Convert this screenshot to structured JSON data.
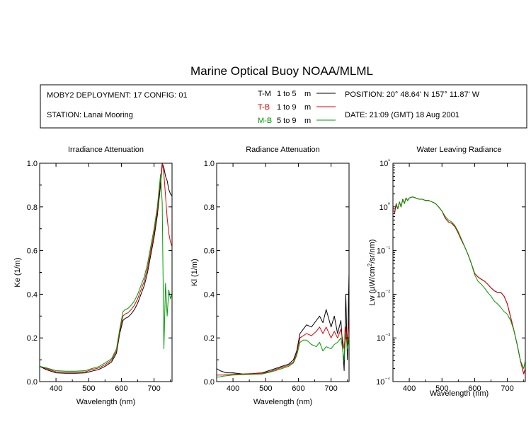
{
  "page": {
    "title": "Marine Optical Buoy NOAA/MLML"
  },
  "header": {
    "deployment": "MOBY2 DEPLOYMENT: 17 CONFIG: 01",
    "station": "STATION: Lanai Mooring",
    "position": "POSITION: 20° 48.64' N   157° 11.87' W",
    "date": "DATE: 21:09 (GMT) 18 Aug 2001",
    "legend": [
      {
        "code": "T-M",
        "range": "1 to 5",
        "unit": "m",
        "color": "#000000"
      },
      {
        "code": "T-B",
        "range": "1 to 9",
        "unit": "m",
        "color": "#e00000"
      },
      {
        "code": "M-B",
        "range": "5 to 9",
        "unit": "m",
        "color": "#009a00"
      }
    ]
  },
  "colors": {
    "T-M": "#000000",
    "T-B": "#e00000",
    "M-B": "#009a00"
  },
  "chart_data": [
    {
      "type": "line",
      "title": "Irradiance Attenuation",
      "xlabel": "Wavelength (nm)",
      "ylabel": "Ke (1/m)",
      "xlim": [
        350,
        755
      ],
      "ylim": [
        0,
        1.0
      ],
      "xticks": [
        400,
        500,
        600,
        700
      ],
      "yticks": [
        0.0,
        0.2,
        0.4,
        0.6,
        0.8,
        1.0
      ],
      "ytick_labels": [
        "0.0",
        "0.2",
        "0.4",
        "0.6",
        "0.8",
        "1.0"
      ],
      "legend": "header",
      "series": [
        {
          "name": "T-M",
          "x": [
            350,
            370,
            400,
            430,
            460,
            490,
            510,
            530,
            550,
            570,
            585,
            595,
            605,
            612,
            620,
            630,
            640,
            650,
            660,
            670,
            680,
            690,
            700,
            710,
            720,
            725,
            730,
            735,
            740,
            745,
            750,
            755
          ],
          "y": [
            0.07,
            0.055,
            0.04,
            0.038,
            0.038,
            0.04,
            0.048,
            0.055,
            0.07,
            0.09,
            0.13,
            0.22,
            0.28,
            0.29,
            0.295,
            0.31,
            0.33,
            0.36,
            0.4,
            0.44,
            0.5,
            0.58,
            0.66,
            0.76,
            0.9,
            1.0,
            0.98,
            0.94,
            0.92,
            0.88,
            0.86,
            0.85
          ]
        },
        {
          "name": "T-B",
          "x": [
            350,
            370,
            400,
            430,
            460,
            490,
            510,
            530,
            550,
            570,
            585,
            595,
            605,
            612,
            620,
            630,
            640,
            650,
            660,
            670,
            680,
            690,
            700,
            710,
            720,
            725,
            730,
            735,
            740,
            745,
            750,
            755
          ],
          "y": [
            0.07,
            0.06,
            0.045,
            0.043,
            0.043,
            0.045,
            0.055,
            0.062,
            0.077,
            0.098,
            0.14,
            0.23,
            0.3,
            0.31,
            0.315,
            0.33,
            0.35,
            0.38,
            0.42,
            0.46,
            0.52,
            0.6,
            0.68,
            0.78,
            0.93,
            1.0,
            0.95,
            0.85,
            0.75,
            0.68,
            0.64,
            0.62
          ]
        },
        {
          "name": "M-B",
          "x": [
            350,
            370,
            400,
            430,
            460,
            490,
            510,
            530,
            550,
            570,
            585,
            595,
            605,
            612,
            620,
            630,
            640,
            650,
            660,
            670,
            680,
            690,
            700,
            710,
            720,
            725,
            730,
            735,
            740,
            745,
            750,
            755
          ],
          "y": [
            0.07,
            0.063,
            0.05,
            0.048,
            0.048,
            0.05,
            0.06,
            0.068,
            0.085,
            0.105,
            0.15,
            0.24,
            0.32,
            0.33,
            0.335,
            0.35,
            0.37,
            0.4,
            0.44,
            0.48,
            0.54,
            0.62,
            0.7,
            0.8,
            0.95,
            0.82,
            0.15,
            0.45,
            0.3,
            0.42,
            0.38,
            0.4
          ]
        }
      ]
    },
    {
      "type": "line",
      "title": "Radiance Attenuation",
      "xlabel": "Wavelength (nm)",
      "ylabel": "Kl (1/m)",
      "xlim": [
        350,
        755
      ],
      "ylim": [
        0,
        1.0
      ],
      "xticks": [
        400,
        500,
        600,
        700
      ],
      "yticks": [
        0.0,
        0.2,
        0.4,
        0.6,
        0.8,
        1.0
      ],
      "ytick_labels": [
        "0.0",
        "0.2",
        "0.4",
        "0.6",
        "0.8",
        "1.0"
      ],
      "legend": "header",
      "series": [
        {
          "name": "T-M",
          "x": [
            350,
            360,
            370,
            380,
            400,
            430,
            460,
            490,
            510,
            530,
            550,
            570,
            585,
            595,
            605,
            615,
            625,
            640,
            655,
            665,
            675,
            685,
            700,
            710,
            720,
            730,
            740,
            745,
            750,
            755
          ],
          "y": [
            0.06,
            0.05,
            0.045,
            0.04,
            0.04,
            0.035,
            0.037,
            0.04,
            0.05,
            0.06,
            0.07,
            0.08,
            0.1,
            0.14,
            0.22,
            0.24,
            0.26,
            0.25,
            0.28,
            0.3,
            0.27,
            0.33,
            0.25,
            0.3,
            0.22,
            0.28,
            0.05,
            0.4,
            0.1,
            0.5
          ]
        },
        {
          "name": "T-B",
          "x": [
            350,
            360,
            370,
            380,
            400,
            430,
            460,
            490,
            510,
            530,
            550,
            570,
            585,
            595,
            605,
            615,
            625,
            640,
            655,
            665,
            675,
            685,
            700,
            710,
            720,
            730,
            740,
            745,
            750,
            755
          ],
          "y": [
            0.03,
            0.03,
            0.03,
            0.032,
            0.035,
            0.034,
            0.036,
            0.038,
            0.045,
            0.055,
            0.065,
            0.075,
            0.09,
            0.13,
            0.2,
            0.21,
            0.22,
            0.21,
            0.23,
            0.25,
            0.22,
            0.25,
            0.2,
            0.23,
            0.2,
            0.24,
            0.15,
            0.25,
            0.18,
            0.3
          ]
        },
        {
          "name": "M-B",
          "x": [
            350,
            360,
            370,
            380,
            400,
            430,
            460,
            490,
            510,
            530,
            550,
            570,
            585,
            595,
            605,
            615,
            625,
            640,
            655,
            665,
            675,
            685,
            700,
            710,
            720,
            730,
            740,
            745,
            750,
            755
          ],
          "y": [
            0.02,
            0.022,
            0.025,
            0.027,
            0.03,
            0.032,
            0.033,
            0.035,
            0.042,
            0.05,
            0.06,
            0.07,
            0.085,
            0.12,
            0.18,
            0.19,
            0.19,
            0.17,
            0.16,
            0.18,
            0.14,
            0.16,
            0.15,
            0.17,
            0.18,
            0.2,
            0.1,
            0.22,
            0.15,
            0.2
          ]
        }
      ]
    },
    {
      "type": "line",
      "title": "Water Leaving Radiance",
      "xlabel": "Wavelength (nm)",
      "ylabel": "Lw (µW/cm²/sr/nm)",
      "xlim": [
        350,
        755
      ],
      "ylim": [
        0.0001,
        10
      ],
      "yscale": "log",
      "xticks": [
        400,
        500,
        600,
        700
      ],
      "yticks": [
        0.0001,
        0.001,
        0.01,
        0.1,
        1,
        10
      ],
      "ytick_labels": [
        "10⁻⁴",
        "10⁻³",
        "10⁻²",
        "10⁻¹",
        "10⁰",
        "10¹"
      ],
      "legend": "header",
      "series": [
        {
          "name": "T-M",
          "x": [
            355,
            360,
            365,
            370,
            375,
            380,
            385,
            390,
            395,
            400,
            410,
            420,
            430,
            440,
            450,
            460,
            470,
            480,
            490,
            500,
            510,
            520,
            530,
            540,
            550,
            560,
            570,
            580,
            590,
            600,
            610,
            620,
            630,
            640,
            650,
            660,
            670,
            680,
            690,
            700,
            710,
            720,
            730,
            740,
            750,
            755
          ],
          "y": [
            0.7,
            1.2,
            0.9,
            1.3,
            1.0,
            1.5,
            1.2,
            1.6,
            1.4,
            1.6,
            1.7,
            1.6,
            1.5,
            1.5,
            1.4,
            1.4,
            1.3,
            1.2,
            1.0,
            0.8,
            0.55,
            0.45,
            0.42,
            0.35,
            0.25,
            0.17,
            0.12,
            0.08,
            0.05,
            0.03,
            0.025,
            0.022,
            0.02,
            0.017,
            0.014,
            0.012,
            0.011,
            0.011,
            0.009,
            0.006,
            0.003,
            0.0015,
            0.0007,
            0.0003,
            0.00015,
            0.0002
          ]
        },
        {
          "name": "T-B",
          "x": [
            355,
            360,
            365,
            370,
            375,
            380,
            385,
            390,
            395,
            400,
            410,
            420,
            430,
            440,
            450,
            460,
            470,
            480,
            490,
            500,
            510,
            520,
            530,
            540,
            550,
            560,
            570,
            580,
            590,
            600,
            610,
            620,
            630,
            640,
            650,
            660,
            670,
            680,
            690,
            700,
            710,
            720,
            730,
            740,
            750,
            755
          ],
          "y": [
            0.7,
            1.2,
            0.9,
            1.3,
            1.0,
            1.5,
            1.2,
            1.6,
            1.4,
            1.6,
            1.7,
            1.6,
            1.5,
            1.5,
            1.4,
            1.4,
            1.3,
            1.2,
            1.0,
            0.8,
            0.55,
            0.45,
            0.42,
            0.35,
            0.25,
            0.17,
            0.12,
            0.08,
            0.05,
            0.03,
            0.025,
            0.022,
            0.02,
            0.017,
            0.014,
            0.012,
            0.011,
            0.011,
            0.009,
            0.006,
            0.003,
            0.0015,
            0.0007,
            0.0003,
            0.00015,
            0.0002
          ]
        },
        {
          "name": "M-B",
          "x": [
            360,
            365,
            370,
            375,
            380,
            385,
            390,
            395,
            400,
            410,
            420,
            430,
            440,
            450,
            460,
            470,
            480,
            490,
            500,
            510,
            520,
            530,
            540,
            550,
            560,
            570,
            580,
            590,
            600,
            610,
            620,
            630,
            640,
            650,
            660,
            670,
            680,
            690,
            700,
            710,
            720,
            730,
            740,
            750,
            755
          ],
          "y": [
            1.2,
            0.9,
            1.3,
            1.0,
            1.5,
            1.2,
            1.6,
            1.4,
            1.6,
            1.7,
            1.6,
            1.5,
            1.5,
            1.4,
            1.4,
            1.3,
            1.2,
            1.0,
            0.8,
            0.6,
            0.5,
            0.45,
            0.37,
            0.27,
            0.18,
            0.12,
            0.08,
            0.05,
            0.028,
            0.02,
            0.017,
            0.014,
            0.011,
            0.009,
            0.007,
            0.006,
            0.005,
            0.004,
            0.0035,
            0.0025,
            0.0015,
            0.0007,
            0.0003,
            0.0002,
            0.0003
          ]
        }
      ]
    }
  ]
}
